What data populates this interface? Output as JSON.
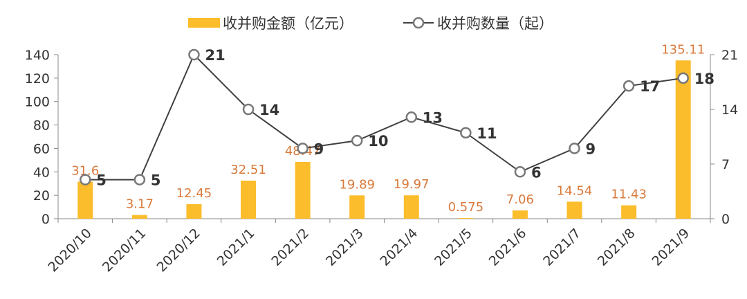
{
  "chart_data": {
    "type": "bar",
    "categories": [
      "2020/10",
      "2020/11",
      "2020/12",
      "2021/1",
      "2021/2",
      "2021/3",
      "2021/4",
      "2021/5",
      "2021/6",
      "2021/7",
      "2021/8",
      "2021/9"
    ],
    "series": [
      {
        "name": "收并购金额（亿元）",
        "type": "bar",
        "axis": "left",
        "color": "#fbbd2b",
        "values": [
          31.6,
          3.17,
          12.45,
          32.51,
          48.47,
          19.89,
          19.97,
          0.575,
          7.06,
          14.54,
          11.43,
          135.11
        ],
        "labels": [
          "31.6",
          "3.17",
          "12.45",
          "32.51",
          "48.47",
          "19.89",
          "19.97",
          "0.575",
          "7.06",
          "14.54",
          "11.43",
          "135.11"
        ]
      },
      {
        "name": "收并购数量（起）",
        "type": "line",
        "axis": "right",
        "color": "#404040",
        "values": [
          5,
          5,
          21,
          14,
          9,
          10,
          13,
          11,
          6,
          9,
          17,
          18
        ],
        "labels": [
          "5",
          "5",
          "21",
          "14",
          "9",
          "10",
          "13",
          "11",
          "6",
          "9",
          "17",
          "18"
        ]
      }
    ],
    "y_left": {
      "min": 0,
      "max": 140,
      "ticks": [
        0,
        20,
        40,
        60,
        80,
        100,
        120,
        140
      ]
    },
    "y_right": {
      "min": 0,
      "max": 21,
      "ticks": [
        0,
        7,
        14,
        21
      ]
    },
    "title": "",
    "xlabel": "",
    "ylabel": "",
    "legend": "top-center",
    "grid": false
  }
}
